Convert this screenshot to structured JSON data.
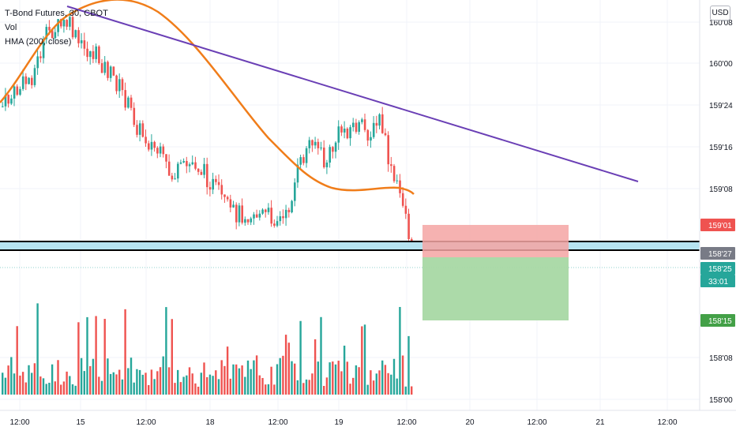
{
  "header": {
    "title": "T-Bond Futures, 30, CBOT",
    "indicator_vol": "Vol",
    "indicator_hma": "HMA (200, close)",
    "currency_button": "USD"
  },
  "colors": {
    "up": "#26a69a",
    "down": "#ef5350",
    "hma": "#f07d1a",
    "trendline": "#6a3fb5",
    "zone_fill": "#b6e3f0",
    "stop_zone": "#f4a5a3",
    "target_zone": "#a8d8a4"
  },
  "chart_data": {
    "type": "candlestick",
    "y_axis_labels": [
      "160'08",
      "160'00",
      "159'24",
      "159'16",
      "159'08",
      "158'08",
      "158'00"
    ],
    "x_axis_labels": [
      "12:00",
      "15",
      "12:00",
      "18",
      "12:00",
      "19",
      "12:00",
      "20",
      "12:00",
      "21",
      "12:00"
    ],
    "price_badges": [
      {
        "label": "159'01",
        "role": "stop-loss",
        "color": "#ef5350"
      },
      {
        "label": "158'27",
        "role": "support-level",
        "color": "#787b86"
      },
      {
        "label": "158'25",
        "role": "last-price",
        "color": "#26a69a"
      },
      {
        "label": "33:01",
        "role": "bar-countdown",
        "color": "#26a69a"
      },
      {
        "label": "158'15",
        "role": "take-profit",
        "color": "#43a047"
      }
    ],
    "last_price": "158'25",
    "hma_period": 200,
    "volume_shown": true,
    "grid": true
  }
}
